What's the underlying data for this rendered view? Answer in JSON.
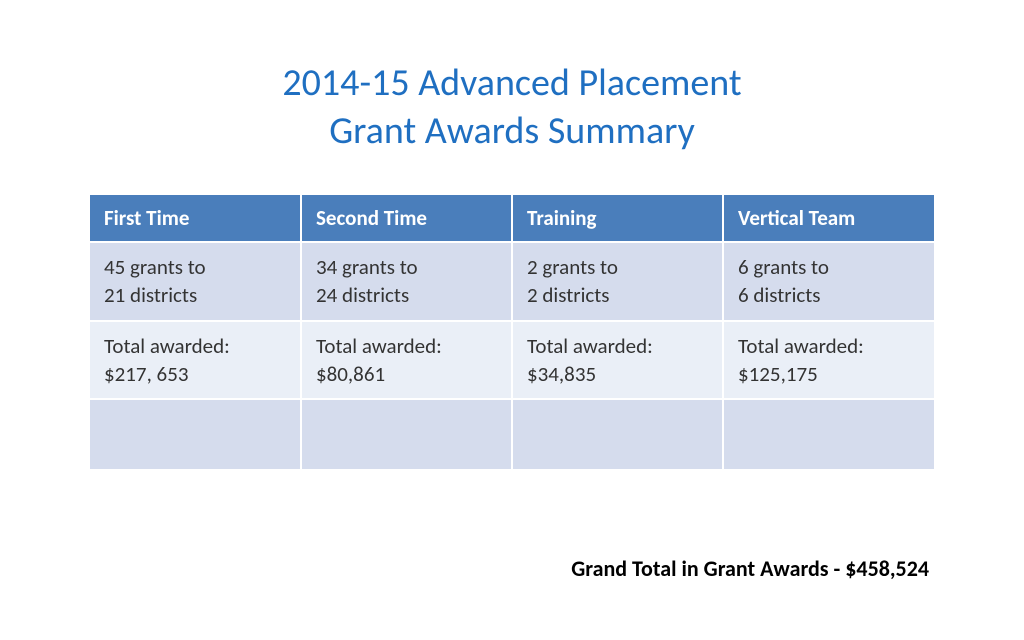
{
  "title": {
    "line1": "2014-15 Advanced Placement",
    "line2": "Grant Awards Summary",
    "color": "#1f6fc1",
    "fontsize": 38
  },
  "table": {
    "type": "table",
    "header_bg": "#4a7ebb",
    "header_text_color": "#ffffff",
    "row_alt_bg_light": "#eaeff7",
    "row_alt_bg_dark": "#d5dced",
    "cell_text_color": "#333333",
    "border_color": "#ffffff",
    "fontsize": 21,
    "columns": [
      {
        "label": "First Time"
      },
      {
        "label": "Second Time"
      },
      {
        "label": "Training"
      },
      {
        "label": "Vertical Team"
      }
    ],
    "rows": [
      {
        "bg": "#d5dced",
        "cells": [
          {
            "l1": "45 grants to",
            "l2": "21 districts"
          },
          {
            "l1": "34 grants to",
            "l2": "24 districts"
          },
          {
            "l1": "2 grants to",
            "l2": "2 districts"
          },
          {
            "l1": "6 grants to",
            "l2": "6 districts"
          }
        ]
      },
      {
        "bg": "#eaeff7",
        "cells": [
          {
            "l1": "Total awarded:",
            "l2": "$217, 653"
          },
          {
            "l1": "Total awarded:",
            "l2": "$80,861"
          },
          {
            "l1": "Total awarded:",
            "l2": "$34,835"
          },
          {
            "l1": "Total awarded:",
            "l2": "$125,175"
          }
        ]
      },
      {
        "bg": "#d5dced",
        "cells": [
          {
            "l1": "",
            "l2": ""
          },
          {
            "l1": "",
            "l2": ""
          },
          {
            "l1": "",
            "l2": ""
          },
          {
            "l1": "",
            "l2": ""
          }
        ]
      }
    ]
  },
  "grand_total": {
    "text": "Grand Total in Grant Awards - $458,524",
    "color": "#000000",
    "fontsize": 22
  }
}
